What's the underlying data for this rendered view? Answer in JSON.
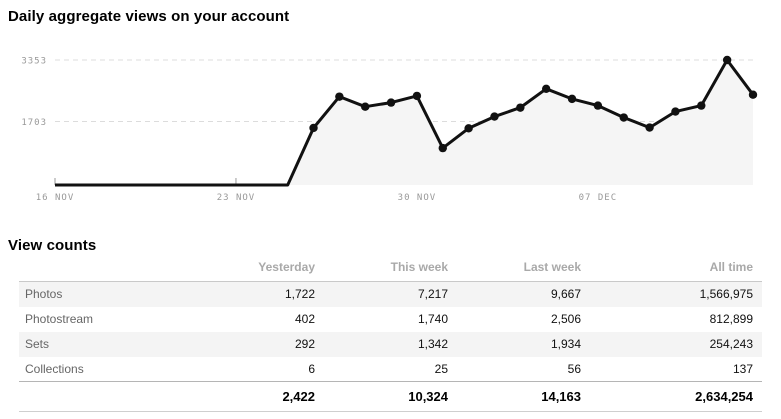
{
  "title": "Daily aggregate views on your account",
  "chart_data": {
    "type": "line",
    "title": "Daily aggregate views on your account",
    "x": [
      "16 Nov",
      "17 Nov",
      "18 Nov",
      "19 Nov",
      "20 Nov",
      "21 Nov",
      "22 Nov",
      "23 Nov",
      "24 Nov",
      "25 Nov",
      "26 Nov",
      "27 Nov",
      "28 Nov",
      "29 Nov",
      "30 Nov",
      "01 Dec",
      "02 Dec",
      "03 Dec",
      "04 Dec",
      "05 Dec",
      "06 Dec",
      "07 Dec",
      "08 Dec",
      "09 Dec",
      "10 Dec",
      "11 Dec",
      "12 Dec",
      "13 Dec"
    ],
    "values": [
      0,
      0,
      0,
      0,
      0,
      0,
      0,
      0,
      0,
      0,
      1530,
      2370,
      2100,
      2210,
      2390,
      990,
      1520,
      1835,
      2075,
      2580,
      2310,
      2130,
      1810,
      1540,
      1970,
      2130,
      3353,
      2422
    ],
    "ylim": [
      0,
      3353
    ],
    "y_ticks": [
      {
        "value": 3353,
        "label": "3353"
      },
      {
        "value": 1703,
        "label": "1703"
      }
    ],
    "x_ticks": [
      {
        "index": 0,
        "label": "16 NOV"
      },
      {
        "index": 7,
        "label": "23 NOV"
      },
      {
        "index": 14,
        "label": "30 NOV"
      },
      {
        "index": 21,
        "label": "07 DEC"
      }
    ],
    "grid": "dashed-horizontal",
    "legend": "none",
    "line_color": "#111111",
    "point_color": "#111111",
    "fill_color": "#f5f5f5",
    "grid_color": "#dcdcdc",
    "axis_label_color": "#999999"
  },
  "view_counts": {
    "title": "View counts",
    "columns": [
      "Yesterday",
      "This week",
      "Last week",
      "All time"
    ],
    "rows": [
      {
        "label": "Photos",
        "values": [
          "1,722",
          "7,217",
          "9,667",
          "1,566,975"
        ]
      },
      {
        "label": "Photostream",
        "values": [
          "402",
          "1,740",
          "2,506",
          "812,899"
        ]
      },
      {
        "label": "Sets",
        "values": [
          "292",
          "1,342",
          "1,934",
          "254,243"
        ]
      },
      {
        "label": "Collections",
        "values": [
          "6",
          "25",
          "56",
          "137"
        ]
      }
    ],
    "totals": [
      "2,422",
      "10,324",
      "14,163",
      "2,634,254"
    ]
  }
}
